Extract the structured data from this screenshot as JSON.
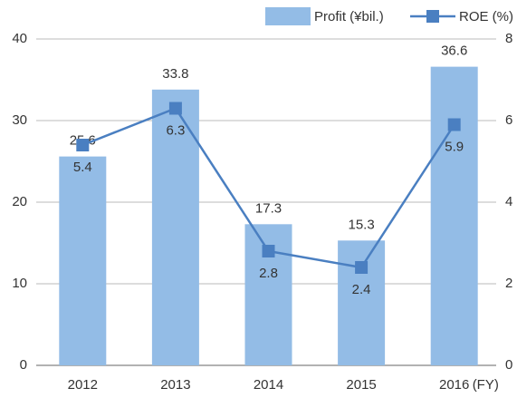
{
  "chart_data": {
    "type": "bar",
    "categories": [
      "2012",
      "2013",
      "2014",
      "2015",
      "2016"
    ],
    "xlabel": "(FY)",
    "series": [
      {
        "name": "Profit (¥bil.)",
        "type": "bar",
        "color": "#93bce6",
        "values": [
          25.6,
          33.8,
          17.3,
          15.3,
          36.6
        ]
      },
      {
        "name": "ROE (%)",
        "type": "line",
        "axis": "y2",
        "color": "#4a7fc1",
        "values": [
          5.4,
          6.3,
          2.8,
          2.4,
          5.9
        ]
      }
    ],
    "ylim": [
      0,
      40
    ],
    "yticks": [
      0,
      10,
      20,
      30,
      40
    ],
    "y2lim": [
      0,
      8
    ],
    "y2ticks": [
      0,
      2,
      4,
      6,
      8
    ],
    "grid": true,
    "legend": "top-right"
  }
}
